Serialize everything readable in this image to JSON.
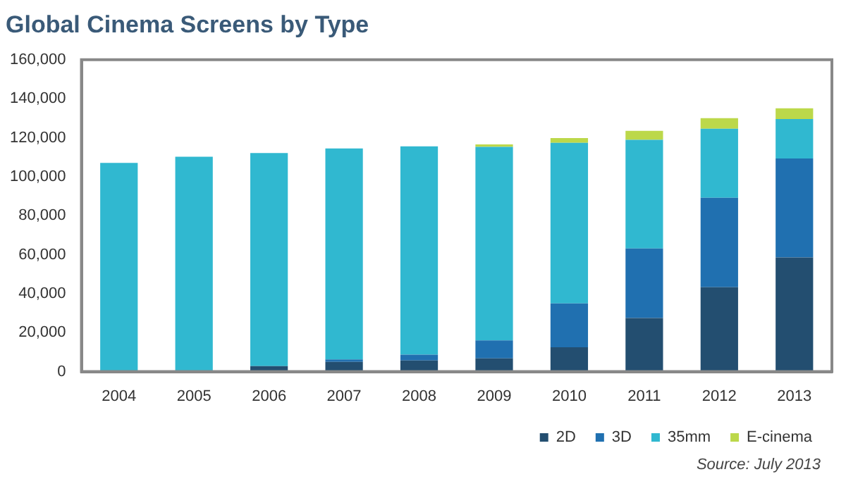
{
  "chart_data": {
    "type": "bar",
    "title": "Global Cinema Screens by Type",
    "categories": [
      "2004",
      "2005",
      "2006",
      "2007",
      "2008",
      "2009",
      "2010",
      "2011",
      "2012",
      "2013"
    ],
    "series": [
      {
        "name": "2D",
        "color": "#234e70",
        "values": [
          0,
          0,
          2800,
          5000,
          5700,
          6800,
          12500,
          27500,
          43300,
          58600
        ]
      },
      {
        "name": "3D",
        "color": "#2070b0",
        "values": [
          0,
          0,
          0,
          1300,
          3000,
          9200,
          22500,
          35700,
          45900,
          50700
        ]
      },
      {
        "name": "35mm",
        "color": "#30b8d0",
        "values": [
          107100,
          110200,
          109300,
          108200,
          106900,
          99300,
          82400,
          55700,
          35400,
          20300
        ]
      },
      {
        "name": "E-cinema",
        "color": "#bcd84a",
        "values": [
          0,
          0,
          0,
          0,
          0,
          1300,
          2400,
          4600,
          5400,
          5500
        ]
      }
    ],
    "stacked": true,
    "ylim": [
      0,
      160000
    ],
    "yticks": [
      0,
      {
        "value": 20000,
        "label": "20,000"
      },
      {
        "value": 40000,
        "label": "40,000"
      },
      {
        "value": 60000,
        "label": "60,000"
      },
      {
        "value": 80000,
        "label": "80,000"
      },
      {
        "value": 100000,
        "label": "100,000"
      },
      {
        "value": 120000,
        "label": "120,000"
      },
      {
        "value": 140000,
        "label": "140,000"
      },
      {
        "value": 160000,
        "label": "160,000"
      }
    ],
    "grid": false,
    "legend": "bottom right",
    "annotations": [
      "Source: July 2013"
    ]
  }
}
